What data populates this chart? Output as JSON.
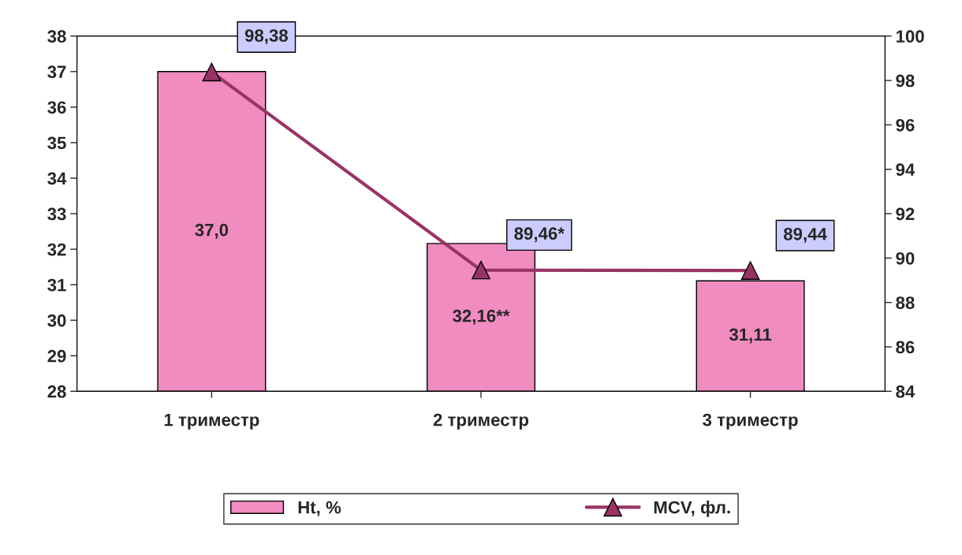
{
  "chart_data": {
    "type": "bar",
    "categories": [
      "1 триместр",
      "2 триместр",
      "3 триместр"
    ],
    "series": [
      {
        "name": "Ht, %",
        "color": "#f08cc0",
        "values": [
          37.0,
          32.16,
          31.11
        ],
        "value_labels": [
          "37,0",
          "32,16**",
          "31,11"
        ]
      },
      {
        "name": "MCV, фл.",
        "type": "line",
        "axis": "y2",
        "color": "#993366",
        "marker": "triangle",
        "values": [
          98.38,
          89.46,
          89.44
        ],
        "value_labels": [
          "98,38",
          "89,46*",
          "89,44"
        ]
      }
    ],
    "ylim": [
      28,
      38
    ],
    "yticks": [
      28,
      29,
      30,
      31,
      32,
      33,
      34,
      35,
      36,
      37,
      38
    ],
    "y2lim": [
      84,
      100
    ],
    "y2ticks": [
      84,
      86,
      88,
      90,
      92,
      94,
      96,
      98,
      100
    ],
    "grid": false,
    "legend": "bottom"
  }
}
